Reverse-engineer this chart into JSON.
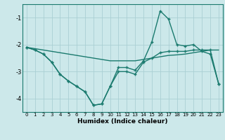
{
  "xlabel": "Humidex (Indice chaleur)",
  "bg_color": "#cce8ea",
  "line_color": "#1a7a6e",
  "grid_color": "#aad0d4",
  "xlim": [
    -0.5,
    23.5
  ],
  "ylim": [
    -4.5,
    -0.5
  ],
  "yticks": [
    -4,
    -3,
    -2,
    -1
  ],
  "xticks": [
    0,
    1,
    2,
    3,
    4,
    5,
    6,
    7,
    8,
    9,
    10,
    11,
    12,
    13,
    14,
    15,
    16,
    17,
    18,
    19,
    20,
    21,
    22,
    23
  ],
  "line1_x": [
    0,
    1,
    2,
    3,
    4,
    5,
    6,
    7,
    8,
    9,
    10,
    11,
    12,
    13,
    14,
    15,
    16,
    17,
    18,
    19,
    20,
    21,
    22,
    23
  ],
  "line1_y": [
    -2.1,
    -2.2,
    -2.35,
    -2.65,
    -3.1,
    -3.35,
    -3.55,
    -3.75,
    -4.25,
    -4.2,
    -3.55,
    -3.0,
    -3.0,
    -3.1,
    -2.65,
    -2.5,
    -2.3,
    -2.25,
    -2.25,
    -2.25,
    -2.2,
    -2.2,
    -2.2,
    -3.45
  ],
  "line2_x": [
    0,
    1,
    2,
    3,
    4,
    5,
    6,
    7,
    8,
    9,
    10,
    11,
    12,
    13,
    14,
    15,
    16,
    17,
    18,
    19,
    20,
    21,
    22,
    23
  ],
  "line2_y": [
    -2.1,
    -2.15,
    -2.2,
    -2.25,
    -2.3,
    -2.35,
    -2.4,
    -2.45,
    -2.5,
    -2.55,
    -2.6,
    -2.6,
    -2.6,
    -2.6,
    -2.55,
    -2.5,
    -2.45,
    -2.4,
    -2.38,
    -2.35,
    -2.3,
    -2.25,
    -2.2,
    -2.2
  ],
  "line3_x": [
    0,
    1,
    2,
    3,
    4,
    5,
    6,
    7,
    8,
    9,
    10,
    11,
    12,
    13,
    14,
    15,
    16,
    17,
    18,
    19,
    20,
    21,
    22,
    23
  ],
  "line3_y": [
    -2.1,
    -2.2,
    -2.35,
    -2.65,
    -3.1,
    -3.35,
    -3.55,
    -3.75,
    -4.25,
    -4.2,
    -3.55,
    -2.85,
    -2.85,
    -2.95,
    -2.6,
    -1.9,
    -0.75,
    -1.05,
    -2.0,
    -2.05,
    -2.0,
    -2.25,
    -2.35,
    -3.45
  ]
}
